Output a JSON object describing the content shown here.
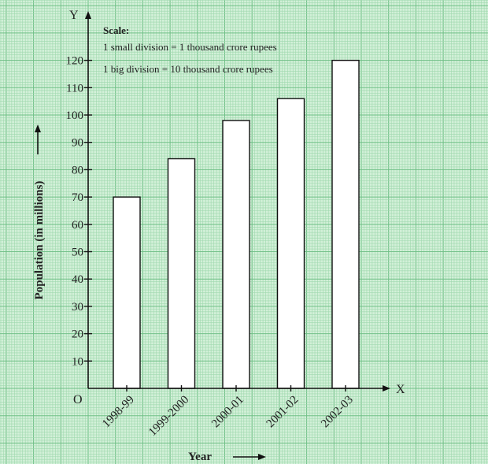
{
  "colors": {
    "paper": "#d2f0d8",
    "minor_grid": "#9fd8ae",
    "major_grid": "#6fbf86",
    "bar_fill": "#ffffff",
    "bar_stroke": "#111111",
    "axis": "#111111"
  },
  "scale_note": {
    "heading": "Scale:",
    "small": "1 small division = 1 thousand crore rupees",
    "big": "1 big division = 10 thousand crore rupees"
  },
  "axis_letters": {
    "x": "X",
    "y": "Y",
    "origin": "O"
  },
  "chart_data": {
    "type": "bar",
    "categories": [
      "1998-99",
      "1999-2000",
      "2000-01",
      "2001-02",
      "2002-03"
    ],
    "values": [
      70,
      84,
      98,
      106,
      120
    ],
    "xlabel": "Year",
    "ylabel": "Population (in millions)",
    "ylim": [
      0,
      120
    ],
    "yticks": [
      10,
      20,
      30,
      40,
      50,
      60,
      70,
      80,
      90,
      100,
      110,
      120
    ],
    "grid": true,
    "legend": "none"
  }
}
